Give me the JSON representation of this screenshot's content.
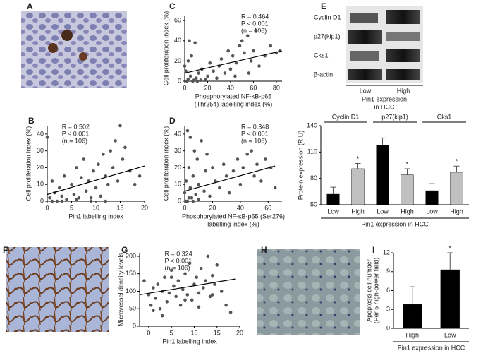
{
  "image_panels": [
    "A",
    "F",
    "H"
  ],
  "blot": {
    "label": "E",
    "rows": [
      "Cyclin D1",
      "p27(kip1)",
      "Cks1",
      "β-actin"
    ],
    "lanes": [
      "Low",
      "High"
    ],
    "caption": [
      "Pin1 expression",
      "in HCC"
    ]
  },
  "chart_data": [
    {
      "type": "scatter",
      "label": "C",
      "ylabel": "Cell proliferation index (%)",
      "xlabel": [
        "Phosphorylated NF-κB-p65",
        "(Thr254) labelling index (%)"
      ],
      "stats": [
        "R = 0.464",
        "P < 0.001",
        "(n = 106)"
      ],
      "xlim": [
        0,
        85
      ],
      "ylim": [
        0,
        65
      ],
      "xticks": [
        0,
        20,
        40,
        60,
        80
      ],
      "yticks": [
        0,
        20,
        40,
        60
      ],
      "x": [
        2,
        3,
        5,
        1,
        0,
        8,
        10,
        12,
        15,
        3,
        6,
        20,
        22,
        25,
        18,
        30,
        32,
        35,
        38,
        40,
        42,
        45,
        48,
        50,
        52,
        55,
        58,
        60,
        62,
        65,
        70,
        75,
        80,
        83,
        4,
        7,
        14,
        28,
        44,
        56,
        9,
        11
      ],
      "values": [
        0,
        2,
        5,
        10,
        15,
        1,
        3,
        8,
        12,
        20,
        25,
        5,
        18,
        10,
        2,
        15,
        22,
        8,
        30,
        12,
        25,
        18,
        35,
        40,
        28,
        45,
        20,
        30,
        50,
        15,
        25,
        35,
        28,
        30,
        40,
        0,
        1,
        3,
        5,
        8,
        38,
        0
      ],
      "trend": {
        "x": [
          0,
          85
        ],
        "y": [
          8,
          30
        ]
      },
      "color": "#555555"
    },
    {
      "type": "scatter",
      "label": "B",
      "ylabel": "Cell proliferation index (%)",
      "xlabel": [
        "Pin1 labelling index"
      ],
      "stats": [
        "R = 0.502",
        "P < 0.001",
        "(n = 106)"
      ],
      "xlim": [
        0,
        20
      ],
      "ylim": [
        0,
        45
      ],
      "xticks": [
        0,
        5,
        10,
        15,
        20
      ],
      "yticks": [
        0,
        10,
        20,
        30,
        40
      ],
      "x": [
        0,
        0.5,
        1,
        1.5,
        2,
        2.5,
        3,
        3.5,
        4,
        5,
        5.5,
        6,
        6.5,
        7,
        7.5,
        8,
        8.5,
        9,
        9.5,
        10,
        10.5,
        11,
        11.5,
        12,
        12.5,
        13,
        13.5,
        14,
        14.5,
        15,
        15.5,
        16,
        17,
        18,
        19,
        1,
        3,
        6,
        9,
        12
      ],
      "values": [
        38,
        2,
        12,
        5,
        0,
        8,
        3,
        15,
        1,
        10,
        4,
        20,
        2,
        14,
        25,
        6,
        12,
        0,
        18,
        8,
        22,
        3,
        28,
        15,
        10,
        30,
        20,
        36,
        12,
        45,
        25,
        32,
        18,
        10,
        15,
        0,
        0,
        1,
        2,
        0
      ],
      "trend": {
        "x": [
          0,
          20
        ],
        "y": [
          4,
          21
        ]
      },
      "color": "#555555"
    },
    {
      "type": "scatter",
      "label": "D",
      "ylabel": "Cell proliferation index (%)",
      "xlabel": [
        "Phosphorylated NF-κB-p65 (Ser276)",
        "labelling index (%)"
      ],
      "stats": [
        "R = 0.348",
        "P < 0.001",
        "(n = 106)"
      ],
      "xlim": [
        0,
        70
      ],
      "ylim": [
        0,
        45
      ],
      "xticks": [
        0,
        20,
        40,
        60
      ],
      "yticks": [
        0,
        10,
        20,
        30,
        40
      ],
      "x": [
        0,
        1,
        2,
        3,
        4,
        5,
        6,
        7,
        8,
        9,
        10,
        12,
        14,
        15,
        16,
        18,
        20,
        22,
        25,
        28,
        30,
        32,
        35,
        38,
        40,
        42,
        45,
        48,
        50,
        52,
        55,
        58,
        62,
        65,
        2,
        4,
        6,
        10,
        1,
        3
      ],
      "values": [
        5,
        12,
        0,
        20,
        8,
        2,
        15,
        30,
        4,
        25,
        10,
        36,
        6,
        18,
        28,
        3,
        20,
        12,
        8,
        22,
        15,
        5,
        18,
        25,
        10,
        20,
        28,
        30,
        15,
        22,
        12,
        25,
        20,
        8,
        42,
        38,
        0,
        1,
        0,
        2
      ],
      "trend": {
        "x": [
          0,
          65
        ],
        "y": [
          6,
          21
        ]
      },
      "color": "#555555"
    },
    {
      "type": "bar",
      "ylabel": "Protein expression (RIU)",
      "xlabel": "Pin1 expression in HCC",
      "groups": [
        "Cyclin D1",
        "p27(kip1)",
        "Cks1"
      ],
      "categories": [
        "Low",
        "High",
        "Low",
        "High",
        "Low",
        "High"
      ],
      "values": [
        62,
        91,
        118,
        84,
        66,
        87
      ],
      "errors": [
        8,
        6,
        8,
        7,
        8,
        7
      ],
      "sig": [
        null,
        "*",
        null,
        "*",
        null,
        "*"
      ],
      "colors": [
        "#000000",
        "#c0c0c0",
        "#000000",
        "#c0c0c0",
        "#000000",
        "#c0c0c0"
      ],
      "ylim": [
        50,
        140
      ],
      "yticks": [
        50,
        80,
        110,
        140
      ]
    },
    {
      "type": "scatter",
      "label": "G",
      "ylabel": "Microvessel density levels",
      "xlabel": [
        "Pin1  labelling index"
      ],
      "stats": [
        "R = 0.324",
        "P < 0.001",
        "(n = 106)"
      ],
      "xlim": [
        -2,
        20
      ],
      "ylim": [
        0,
        210
      ],
      "xticks": [
        0,
        5,
        10,
        15,
        20
      ],
      "yticks": [
        0,
        50,
        100,
        150,
        200
      ],
      "x": [
        -1,
        0,
        0.5,
        1,
        1.5,
        2,
        2.5,
        3,
        3.5,
        4,
        4.5,
        5,
        5.5,
        6,
        6.5,
        7,
        7.5,
        8,
        8.5,
        9,
        9.5,
        10,
        10.5,
        11,
        11.5,
        12,
        12.5,
        13,
        13.5,
        14,
        14.5,
        15,
        16,
        17,
        18,
        1,
        3,
        5,
        8,
        11,
        14
      ],
      "values": [
        130,
        90,
        60,
        110,
        80,
        120,
        50,
        100,
        140,
        70,
        95,
        160,
        115,
        85,
        130,
        60,
        105,
        150,
        90,
        180,
        75,
        120,
        140,
        95,
        165,
        110,
        130,
        200,
        85,
        145,
        120,
        175,
        100,
        60,
        40,
        45,
        30,
        140,
        75,
        55,
        90
      ],
      "trend": {
        "x": [
          -2,
          19
        ],
        "y": [
          90,
          135
        ]
      },
      "color": "#555555"
    },
    {
      "type": "bar",
      "label": "I",
      "ylabel": [
        "Apoptosis cell number",
        "(Per 5 high-power field)"
      ],
      "xlabel": "Pin1 expression in HCC",
      "categories": [
        "High",
        "Low"
      ],
      "values": [
        3.8,
        9.3
      ],
      "errors": [
        2.8,
        2.7
      ],
      "sig": [
        null,
        "*"
      ],
      "colors": [
        "#000000",
        "#000000"
      ],
      "ylim": [
        0,
        12
      ],
      "yticks": [
        0,
        3,
        6,
        9,
        12
      ]
    }
  ]
}
